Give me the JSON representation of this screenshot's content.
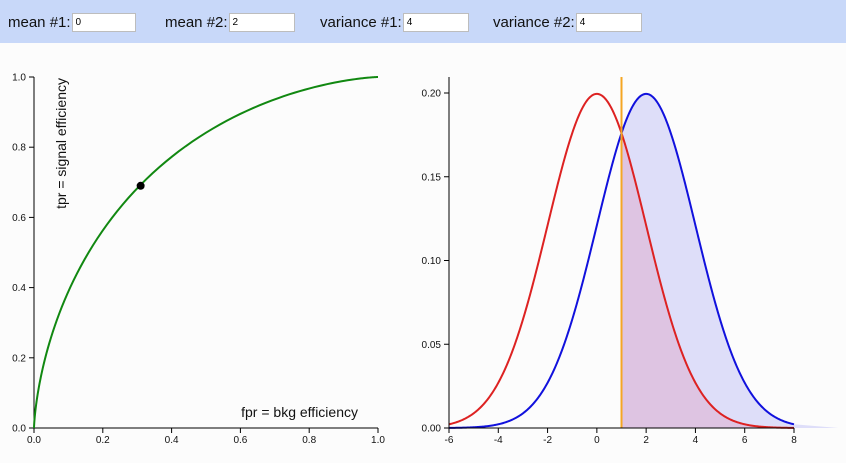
{
  "inputs": {
    "mean1": {
      "label": "mean #1:",
      "value": "0"
    },
    "mean2": {
      "label": "mean #2:",
      "value": "2"
    },
    "variance1": {
      "label": "variance #1:",
      "value": "4"
    },
    "variance2": {
      "label": "variance #2:",
      "value": "4"
    }
  },
  "roc": {
    "xlabel": "fpr = bkg efficiency",
    "ylabel": "tpr = signal efficiency",
    "xticks": [
      "0.0",
      "0.2",
      "0.4",
      "0.6",
      "0.8",
      "1.0"
    ],
    "yticks": [
      "0.0",
      "0.2",
      "0.4",
      "0.6",
      "0.8",
      "1.0"
    ]
  },
  "pdf": {
    "xticks": [
      "-6",
      "-4",
      "-2",
      "0",
      "2",
      "4",
      "6",
      "8"
    ],
    "yticks": [
      "0.00",
      "0.05",
      "0.10",
      "0.15",
      "0.20"
    ]
  },
  "chart_data": [
    {
      "type": "line",
      "name": "roc",
      "xlabel": "fpr = bkg efficiency",
      "ylabel": "tpr = signal efficiency",
      "xlim": [
        0,
        1
      ],
      "ylim": [
        0,
        1
      ],
      "curve_color": "#118811",
      "operating_point": {
        "fpr": 0.31,
        "tpr": 0.69
      }
    },
    {
      "type": "line",
      "name": "pdf",
      "xlim": [
        -6,
        8
      ],
      "ylim": [
        0,
        0.2
      ],
      "series": [
        {
          "mean": 0,
          "variance": 4,
          "color": "#dd2222"
        },
        {
          "mean": 2,
          "variance": 4,
          "color": "#1111dd"
        }
      ],
      "threshold": 1,
      "threshold_color": "#f5a623"
    }
  ]
}
